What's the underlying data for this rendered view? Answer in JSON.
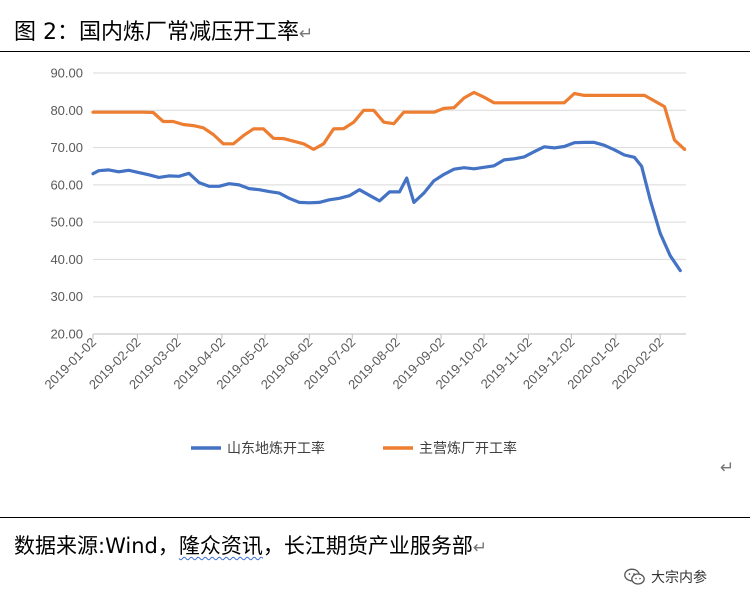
{
  "caption": {
    "label": "图 2：国内炼厂常减压开工率",
    "return_mark": "↵"
  },
  "source": {
    "prefix": "数据来源:Wind，",
    "underlined": "隆众资讯",
    "suffix": "，长江期货产业服务部",
    "return_mark": "↵"
  },
  "right_return_mark": "↵",
  "watermark": {
    "text": "大宗内参",
    "icon": "wechat-icon"
  },
  "colors": {
    "series1": "#4472C4",
    "series2": "#ED7D31",
    "grid": "#D9D9D9",
    "tick": "#595959"
  },
  "chart_data": {
    "type": "line",
    "title": "",
    "xlabel": "",
    "ylabel": "",
    "ylim": [
      20,
      90
    ],
    "yticks": [
      "20.00",
      "30.00",
      "40.00",
      "50.00",
      "60.00",
      "70.00",
      "80.00",
      "90.00"
    ],
    "xlim": [
      "2019-01-02",
      "2020-02-20"
    ],
    "xticks": [
      "2019-01-02",
      "2019-02-02",
      "2019-03-02",
      "2019-04-02",
      "2019-05-02",
      "2019-06-02",
      "2019-07-02",
      "2019-08-02",
      "2019-09-02",
      "2019-10-02",
      "2019-11-02",
      "2019-12-02",
      "2020-01-02",
      "2020-02-02"
    ],
    "grid": "horizontal",
    "legend_position": "bottom",
    "series": [
      {
        "name": "山东地炼开工率",
        "color": "#4472C4",
        "points": [
          [
            "2019-01-02",
            63.0
          ],
          [
            "2019-01-06",
            63.8
          ],
          [
            "2019-01-13",
            64.0
          ],
          [
            "2019-01-20",
            63.5
          ],
          [
            "2019-01-27",
            63.9
          ],
          [
            "2019-02-03",
            63.3
          ],
          [
            "2019-02-10",
            62.7
          ],
          [
            "2019-02-17",
            62.0
          ],
          [
            "2019-02-24",
            62.4
          ],
          [
            "2019-03-03",
            62.3
          ],
          [
            "2019-03-10",
            63.1
          ],
          [
            "2019-03-17",
            60.6
          ],
          [
            "2019-03-24",
            59.6
          ],
          [
            "2019-03-31",
            59.6
          ],
          [
            "2019-04-07",
            60.3
          ],
          [
            "2019-04-14",
            60.0
          ],
          [
            "2019-04-21",
            59.0
          ],
          [
            "2019-04-28",
            58.7
          ],
          [
            "2019-05-05",
            58.2
          ],
          [
            "2019-05-12",
            57.8
          ],
          [
            "2019-05-19",
            56.4
          ],
          [
            "2019-05-26",
            55.3
          ],
          [
            "2019-06-02",
            55.2
          ],
          [
            "2019-06-09",
            55.3
          ],
          [
            "2019-06-16",
            56.0
          ],
          [
            "2019-06-23",
            56.4
          ],
          [
            "2019-06-30",
            57.1
          ],
          [
            "2019-07-07",
            58.7
          ],
          [
            "2019-07-14",
            57.2
          ],
          [
            "2019-07-21",
            55.7
          ],
          [
            "2019-07-28",
            58.1
          ],
          [
            "2019-08-04",
            58.1
          ],
          [
            "2019-08-09",
            61.8
          ],
          [
            "2019-08-14",
            55.3
          ],
          [
            "2019-08-21",
            57.8
          ],
          [
            "2019-08-28",
            61.1
          ],
          [
            "2019-09-04",
            62.8
          ],
          [
            "2019-09-11",
            64.2
          ],
          [
            "2019-09-18",
            64.6
          ],
          [
            "2019-09-25",
            64.3
          ],
          [
            "2019-10-02",
            64.7
          ],
          [
            "2019-10-09",
            65.1
          ],
          [
            "2019-10-16",
            66.7
          ],
          [
            "2019-10-23",
            67.0
          ],
          [
            "2019-10-30",
            67.5
          ],
          [
            "2019-11-06",
            68.9
          ],
          [
            "2019-11-13",
            70.2
          ],
          [
            "2019-11-20",
            69.9
          ],
          [
            "2019-11-27",
            70.3
          ],
          [
            "2019-12-04",
            71.3
          ],
          [
            "2019-12-11",
            71.4
          ],
          [
            "2019-12-18",
            71.4
          ],
          [
            "2019-12-25",
            70.6
          ],
          [
            "2020-01-01",
            69.4
          ],
          [
            "2020-01-08",
            68.0
          ],
          [
            "2020-01-15",
            67.4
          ],
          [
            "2020-01-20",
            65.0
          ],
          [
            "2020-01-26",
            56.0
          ],
          [
            "2020-02-02",
            47.0
          ],
          [
            "2020-02-09",
            41.0
          ],
          [
            "2020-02-16",
            37.0
          ]
        ]
      },
      {
        "name": "主营炼厂开工率",
        "color": "#ED7D31",
        "points": [
          [
            "2019-01-02",
            79.5
          ],
          [
            "2019-01-09",
            79.5
          ],
          [
            "2019-01-16",
            79.5
          ],
          [
            "2019-01-23",
            79.5
          ],
          [
            "2019-01-30",
            79.5
          ],
          [
            "2019-02-06",
            79.5
          ],
          [
            "2019-02-13",
            79.4
          ],
          [
            "2019-02-20",
            77.0
          ],
          [
            "2019-02-27",
            77.0
          ],
          [
            "2019-03-06",
            76.2
          ],
          [
            "2019-03-13",
            75.9
          ],
          [
            "2019-03-20",
            75.3
          ],
          [
            "2019-03-27",
            73.5
          ],
          [
            "2019-04-03",
            71.0
          ],
          [
            "2019-04-10",
            71.0
          ],
          [
            "2019-04-17",
            73.2
          ],
          [
            "2019-04-24",
            75.0
          ],
          [
            "2019-05-01",
            75.0
          ],
          [
            "2019-05-08",
            72.5
          ],
          [
            "2019-05-15",
            72.4
          ],
          [
            "2019-05-22",
            71.7
          ],
          [
            "2019-05-29",
            71.0
          ],
          [
            "2019-06-05",
            69.5
          ],
          [
            "2019-06-12",
            71.0
          ],
          [
            "2019-06-19",
            75.0
          ],
          [
            "2019-06-26",
            75.1
          ],
          [
            "2019-07-03",
            76.8
          ],
          [
            "2019-07-10",
            80.0
          ],
          [
            "2019-07-17",
            80.0
          ],
          [
            "2019-07-24",
            76.8
          ],
          [
            "2019-07-31",
            76.4
          ],
          [
            "2019-08-07",
            79.5
          ],
          [
            "2019-08-14",
            79.5
          ],
          [
            "2019-08-21",
            79.5
          ],
          [
            "2019-08-28",
            79.5
          ],
          [
            "2019-09-04",
            80.5
          ],
          [
            "2019-09-11",
            80.7
          ],
          [
            "2019-09-18",
            83.3
          ],
          [
            "2019-09-25",
            84.8
          ],
          [
            "2019-10-02",
            83.5
          ],
          [
            "2019-10-09",
            82.0
          ],
          [
            "2019-10-16",
            82.0
          ],
          [
            "2019-10-23",
            82.0
          ],
          [
            "2019-10-30",
            82.0
          ],
          [
            "2019-11-06",
            82.0
          ],
          [
            "2019-11-13",
            82.0
          ],
          [
            "2019-11-20",
            82.0
          ],
          [
            "2019-11-27",
            82.0
          ],
          [
            "2019-12-04",
            84.5
          ],
          [
            "2019-12-11",
            84.0
          ],
          [
            "2019-12-18",
            84.0
          ],
          [
            "2019-12-25",
            84.0
          ],
          [
            "2020-01-01",
            84.0
          ],
          [
            "2020-01-08",
            84.0
          ],
          [
            "2020-01-15",
            84.0
          ],
          [
            "2020-01-22",
            84.0
          ],
          [
            "2020-01-29",
            82.5
          ],
          [
            "2020-02-05",
            81.0
          ],
          [
            "2020-02-12",
            72.0
          ],
          [
            "2020-02-19",
            69.5
          ]
        ]
      }
    ]
  }
}
